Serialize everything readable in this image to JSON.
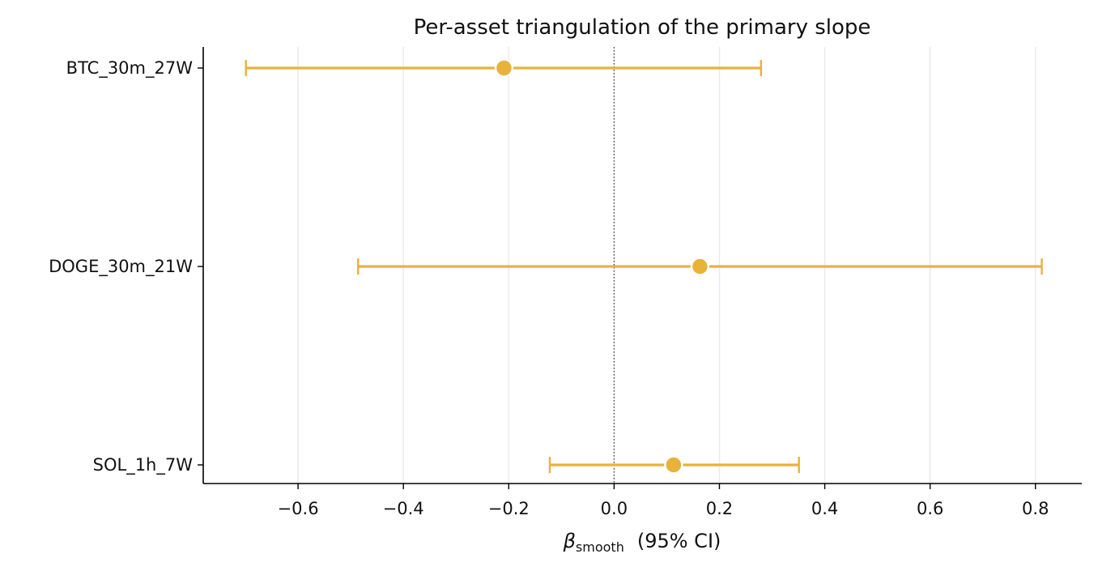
{
  "chart_data": {
    "type": "errorbar",
    "title": "Per-asset triangulation of the primary slope",
    "xlabel": {
      "symbol": "β",
      "subscript": "smooth",
      "suffix": "(95% CI)"
    },
    "ylabel": "",
    "xlim": [
      -0.78,
      0.888
    ],
    "xticks": [
      -0.6,
      -0.4,
      -0.2,
      0.0,
      0.2,
      0.4,
      0.6,
      0.8
    ],
    "xtick_labels": [
      "−0.6",
      "−0.4",
      "−0.2",
      "0.0",
      "0.2",
      "0.4",
      "0.6",
      "0.8"
    ],
    "grid": "x",
    "reference_line": 0.0,
    "color": "#E8B23B",
    "series": [
      {
        "label": "BTC_30m_27W",
        "estimate": -0.209,
        "lower": -0.699,
        "upper": 0.279
      },
      {
        "label": "DOGE_30m_21W",
        "estimate": 0.163,
        "lower": -0.486,
        "upper": 0.812
      },
      {
        "label": "SOL_1h_7W",
        "estimate": 0.113,
        "lower": -0.122,
        "upper": 0.351
      }
    ]
  }
}
